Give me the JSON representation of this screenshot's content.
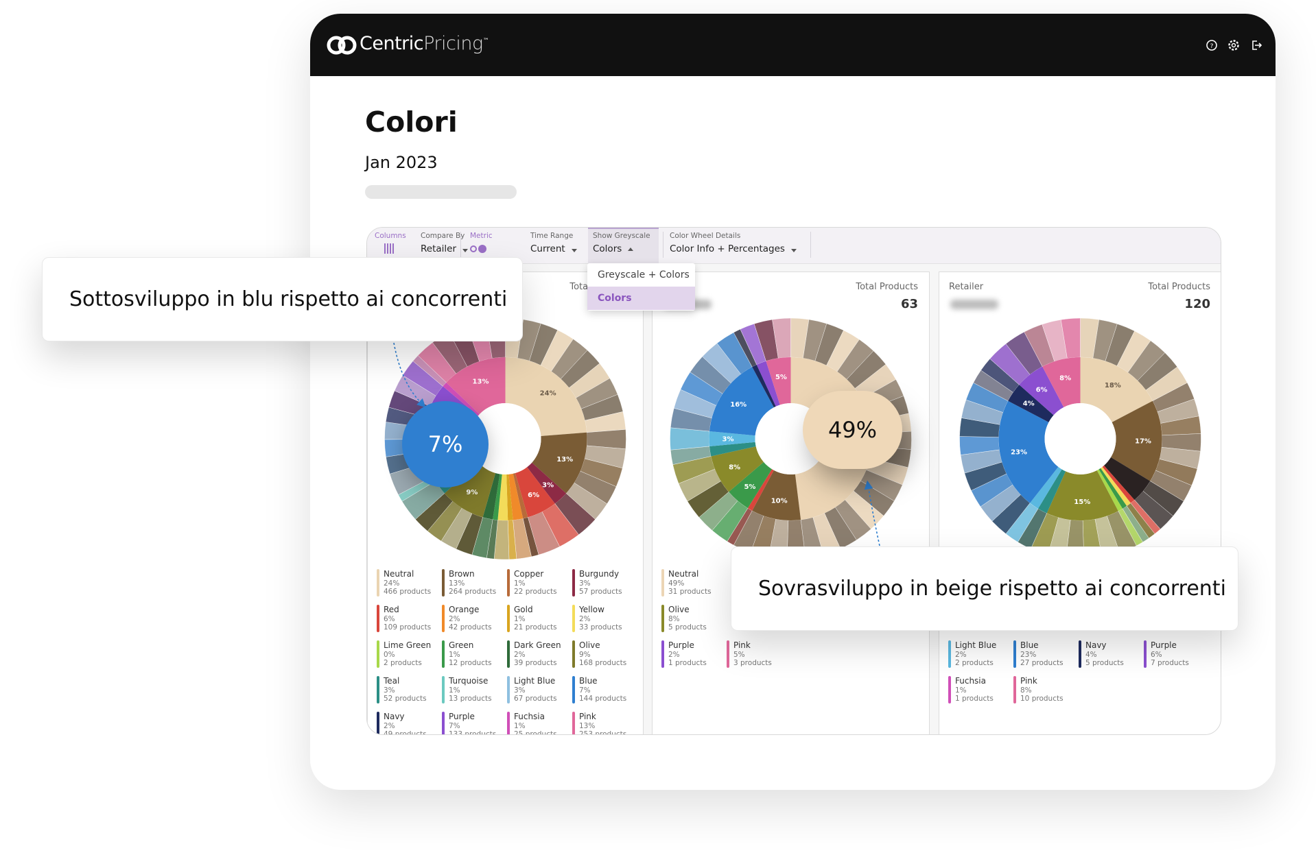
{
  "header": {
    "logo_primary": "Centric",
    "logo_secondary": "Pricing",
    "logo_mark": "™"
  },
  "page": {
    "title": "Colori",
    "date": "Jan 2023"
  },
  "toolbar": [
    {
      "label": "Columns"
    },
    {
      "label": "Compare By",
      "value": "Retailer"
    },
    {
      "label": "Metric"
    },
    {
      "label": "Time Range",
      "value": "Current"
    },
    {
      "label": "Show Greyscale",
      "value": "Colors"
    },
    {
      "label": "Color Wheel Details",
      "value": "Color Info + Percentages"
    }
  ],
  "dropdown": {
    "options": [
      "Greyscale + Colors",
      "Colors"
    ],
    "selected": 1
  },
  "callouts": [
    "Sottosviluppo in blu rispetto ai concorrenti",
    "Sovrasviluppo in beige rispetto ai concorrenti"
  ],
  "panels": [
    {
      "total_label": "Total Products",
      "highlight": "7%",
      "wheel": [
        {
          "color": "#ead4b2",
          "value": 24,
          "label": "24%"
        },
        {
          "color": "#7a5c35",
          "value": 13,
          "label": "13%"
        },
        {
          "color": "#8d2a45",
          "value": 3,
          "label": "3%"
        },
        {
          "color": "#d9463c",
          "value": 6,
          "label": "6%"
        },
        {
          "color": "#b86b3a",
          "value": 1
        },
        {
          "color": "#f08a2a",
          "value": 2
        },
        {
          "color": "#d9a520",
          "value": 1
        },
        {
          "color": "#f3dc5a",
          "value": 2
        },
        {
          "color": "#3a9a4a",
          "value": 1
        },
        {
          "color": "#2f6b3a",
          "value": 2
        },
        {
          "color": "#7f7a2b",
          "value": 9,
          "label": "9%"
        },
        {
          "color": "#2c8f86",
          "value": 3
        },
        {
          "color": "#6cc9c0",
          "value": 1
        },
        {
          "color": "#8fc0e0",
          "value": 3
        },
        {
          "color": "#2f7fd0",
          "value": 7
        },
        {
          "color": "#1e2b5e",
          "value": 2
        },
        {
          "color": "#8b4fd0",
          "value": 7
        },
        {
          "color": "#d04fb8",
          "value": 1
        },
        {
          "color": "#e0679a",
          "value": 13,
          "label": "13%"
        }
      ],
      "legend": [
        {
          "name": "Neutral",
          "percent": "24%",
          "products": "466 products",
          "color": "#ead4b2"
        },
        {
          "name": "Brown",
          "percent": "13%",
          "products": "264 products",
          "color": "#7a5c35"
        },
        {
          "name": "Copper",
          "percent": "1%",
          "products": "22 products",
          "color": "#b86b3a"
        },
        {
          "name": "Burgundy",
          "percent": "3%",
          "products": "57 products",
          "color": "#8d2a45"
        },
        {
          "name": "Red",
          "percent": "6%",
          "products": "109 products",
          "color": "#d9463c"
        },
        {
          "name": "Orange",
          "percent": "2%",
          "products": "42 products",
          "color": "#f08a2a"
        },
        {
          "name": "Gold",
          "percent": "1%",
          "products": "21 products",
          "color": "#d9a520"
        },
        {
          "name": "Yellow",
          "percent": "2%",
          "products": "33 products",
          "color": "#f3dc5a"
        },
        {
          "name": "Lime Green",
          "percent": "0%",
          "products": "2 products",
          "color": "#a8d84a"
        },
        {
          "name": "Green",
          "percent": "1%",
          "products": "12 products",
          "color": "#3a9a4a"
        },
        {
          "name": "Dark Green",
          "percent": "2%",
          "products": "39 products",
          "color": "#2f6b3a"
        },
        {
          "name": "Olive",
          "percent": "9%",
          "products": "168 products",
          "color": "#7f7a2b"
        },
        {
          "name": "Teal",
          "percent": "3%",
          "products": "52 products",
          "color": "#2c8f86"
        },
        {
          "name": "Turquoise",
          "percent": "1%",
          "products": "13 products",
          "color": "#6cc9c0"
        },
        {
          "name": "Light Blue",
          "percent": "3%",
          "products": "67 products",
          "color": "#8fc0e0"
        },
        {
          "name": "Blue",
          "percent": "7%",
          "products": "144 products",
          "color": "#2f7fd0"
        },
        {
          "name": "Navy",
          "percent": "2%",
          "products": "49 products",
          "color": "#1e2b5e"
        },
        {
          "name": "Purple",
          "percent": "7%",
          "products": "133 products",
          "color": "#8b4fd0"
        },
        {
          "name": "Fuchsia",
          "percent": "1%",
          "products": "25 products",
          "color": "#d04fb8"
        },
        {
          "name": "Pink",
          "percent": "13%",
          "products": "253 products",
          "color": "#e0679a"
        }
      ]
    },
    {
      "total_label": "Total Products",
      "total": "63",
      "highlight": "49%",
      "wheel": [
        {
          "color": "#ecd5b5",
          "value": 49
        },
        {
          "color": "#7a5c35",
          "value": 10,
          "label": "10%"
        },
        {
          "color": "#d9463c",
          "value": 1
        },
        {
          "color": "#3a9a4a",
          "value": 5,
          "label": "5%"
        },
        {
          "color": "#8a8a2a",
          "value": 8,
          "label": "8%"
        },
        {
          "color": "#2c8f86",
          "value": 2
        },
        {
          "color": "#5ab8e0",
          "value": 3,
          "label": "3%"
        },
        {
          "color": "#2f7fd0",
          "value": 16,
          "label": "16%"
        },
        {
          "color": "#1e2b5e",
          "value": 1
        },
        {
          "color": "#8b4fd0",
          "value": 2
        },
        {
          "color": "#e0679a",
          "value": 5,
          "label": "5%"
        }
      ],
      "legend": [
        {
          "name": "Neutral",
          "percent": "49%",
          "products": "31 products",
          "color": "#ecd5b5"
        },
        null,
        null,
        null,
        {
          "name": "Olive",
          "percent": "8%",
          "products": "5 products",
          "color": "#8a8a2a"
        },
        null,
        null,
        null,
        {
          "name": "Purple",
          "percent": "2%",
          "products": "1 products",
          "color": "#8b4fd0"
        },
        {
          "name": "Pink",
          "percent": "5%",
          "products": "3 products",
          "color": "#e0679a"
        }
      ]
    },
    {
      "retailer_label": "Retailer",
      "total_label": "Total Products",
      "total": "120",
      "wheel": [
        {
          "color": "#ead4b2",
          "value": 18,
          "label": "18%"
        },
        {
          "color": "#7a5c35",
          "value": 17,
          "label": "17%"
        },
        {
          "color": "#2a2222",
          "value": 5
        },
        {
          "color": "#d9463c",
          "value": 1
        },
        {
          "color": "#f3dc5a",
          "value": 1
        },
        {
          "color": "#3a9a4a",
          "value": 1
        },
        {
          "color": "#a8d84a",
          "value": 1
        },
        {
          "color": "#8a8a2a",
          "value": 15,
          "label": "15%"
        },
        {
          "color": "#2c8f86",
          "value": 2
        },
        {
          "color": "#5ab8e0",
          "value": 2
        },
        {
          "color": "#2f7fd0",
          "value": 23,
          "label": "23%"
        },
        {
          "color": "#1e2b5e",
          "value": 4,
          "label": "4%"
        },
        {
          "color": "#8b4fd0",
          "value": 6,
          "label": "6%"
        },
        {
          "color": "#e0679a",
          "value": 8,
          "label": "8%"
        }
      ],
      "legend": [
        null,
        null,
        null,
        null,
        null,
        null,
        null,
        null,
        {
          "name": "Light Blue",
          "percent": "2%",
          "products": "2 products",
          "color": "#5ab8e0"
        },
        {
          "name": "Blue",
          "percent": "23%",
          "products": "27 products",
          "color": "#2f7fd0"
        },
        {
          "name": "Navy",
          "percent": "4%",
          "products": "5 products",
          "color": "#1e2b5e"
        },
        {
          "name": "Purple",
          "percent": "6%",
          "products": "7 products",
          "color": "#8b4fd0"
        },
        {
          "name": "Fuchsia",
          "percent": "1%",
          "products": "1 products",
          "color": "#d04fb8"
        },
        {
          "name": "Pink",
          "percent": "8%",
          "products": "10 products",
          "color": "#e0679a"
        }
      ]
    }
  ]
}
